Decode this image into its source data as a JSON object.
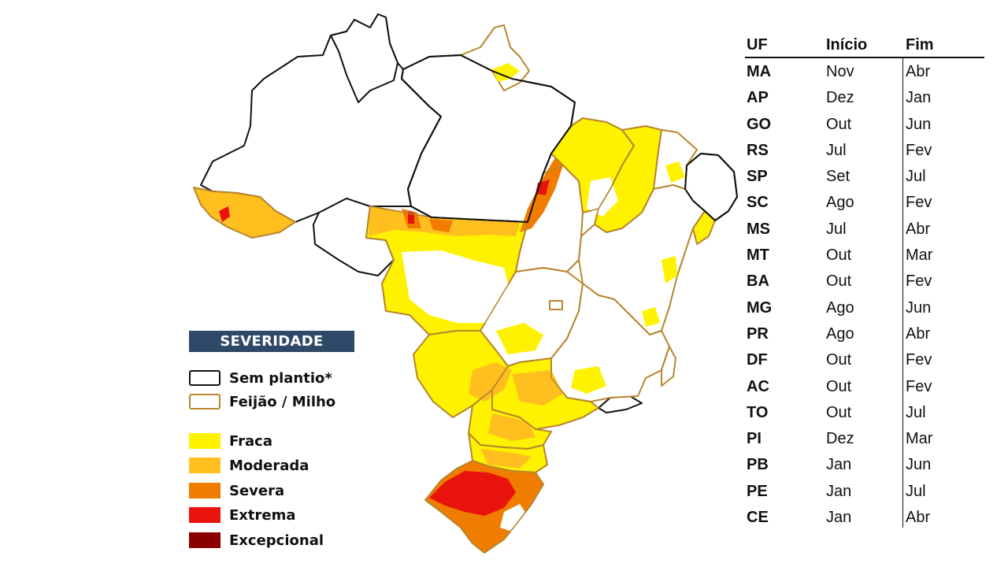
{
  "legend": {
    "title": "SEVERIDADE",
    "items": [
      {
        "label": "Sem plantio*",
        "style": "outline",
        "color": "#111111"
      },
      {
        "label": "Feijão / Milho",
        "style": "outline",
        "color": "#b7862e"
      },
      {
        "label": "Fraca",
        "style": "fill",
        "color": "#fff200"
      },
      {
        "label": "Moderada",
        "style": "fill",
        "color": "#ffbf1f"
      },
      {
        "label": "Severa",
        "style": "fill",
        "color": "#f07d00"
      },
      {
        "label": "Extrema",
        "style": "fill",
        "color": "#e8140c"
      },
      {
        "label": "Excepcional",
        "style": "fill",
        "color": "#8a0000"
      }
    ]
  },
  "table": {
    "headers": [
      "UF",
      "Início",
      "Fim"
    ],
    "rows": [
      [
        "MA",
        "Nov",
        "Abr"
      ],
      [
        "AP",
        "Dez",
        "Jan"
      ],
      [
        "GO",
        "Out",
        "Jun"
      ],
      [
        "RS",
        "Jul",
        "Fev"
      ],
      [
        "SP",
        "Set",
        "Jul"
      ],
      [
        "SC",
        "Ago",
        "Fev"
      ],
      [
        "MS",
        "Jul",
        "Abr"
      ],
      [
        "MT",
        "Out",
        "Mar"
      ],
      [
        "BA",
        "Out",
        "Fev"
      ],
      [
        "MG",
        "Ago",
        "Jun"
      ],
      [
        "PR",
        "Ago",
        "Abr"
      ],
      [
        "DF",
        "Out",
        "Fev"
      ],
      [
        "AC",
        "Out",
        "Fev"
      ],
      [
        "TO",
        "Out",
        "Jul"
      ],
      [
        "PI",
        "Dez",
        "Mar"
      ],
      [
        "PB",
        "Jan",
        "Jun"
      ],
      [
        "PE",
        "Jan",
        "Jul"
      ],
      [
        "CE",
        "Jan",
        "Abr"
      ]
    ]
  },
  "map": {
    "colors": {
      "fraca": "#fff200",
      "moderada": "#ffbf1f",
      "severa": "#f07d00",
      "extrema": "#e8140c",
      "sem_plantio_border": "#111111",
      "feijao_milho_border": "#b7862e"
    }
  }
}
